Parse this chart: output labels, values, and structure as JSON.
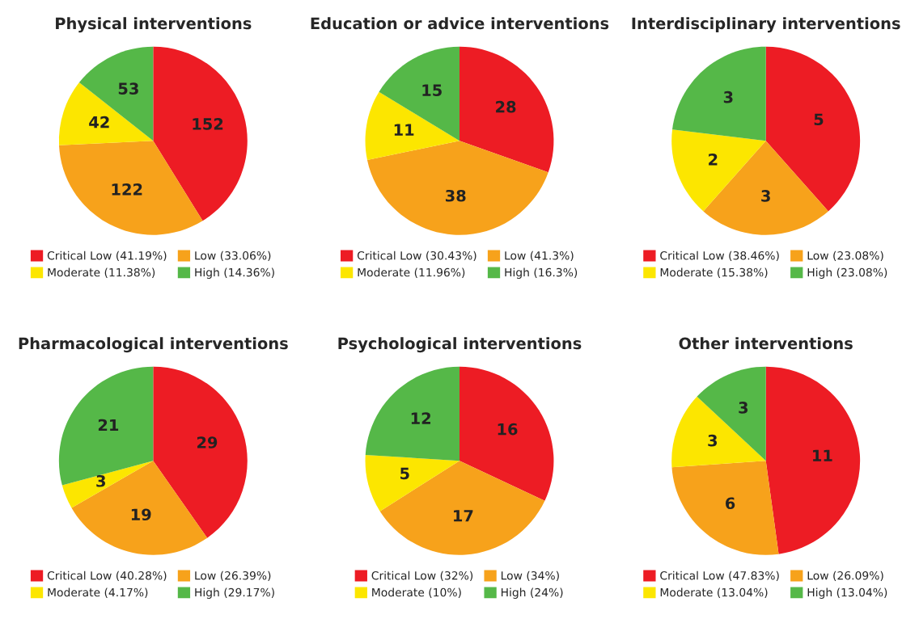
{
  "chart_data": [
    {
      "type": "pie",
      "title": "Physical interventions",
      "categories": [
        "Critical Low (41.19%)",
        "Low (33.06%)",
        "Moderate (11.38%)",
        "High (14.36%)"
      ],
      "values": [
        152,
        122,
        42,
        53
      ],
      "colors": [
        "#ed1c24",
        "#f7a21b",
        "#fce600",
        "#55b848"
      ],
      "data_labels": true,
      "legend": "bottom"
    },
    {
      "type": "pie",
      "title": "Education or advice interventions",
      "categories": [
        "Critical Low (30.43%)",
        "Low (41.3%)",
        "Moderate (11.96%)",
        "High (16.3%)"
      ],
      "values": [
        28,
        38,
        11,
        15
      ],
      "colors": [
        "#ed1c24",
        "#f7a21b",
        "#fce600",
        "#55b848"
      ],
      "data_labels": true,
      "legend": "bottom"
    },
    {
      "type": "pie",
      "title": "Interdisciplinary interventions",
      "categories": [
        "Critical Low (38.46%)",
        "Low (23.08%)",
        "Moderate (15.38%)",
        "High (23.08%)"
      ],
      "values": [
        5,
        3,
        2,
        3
      ],
      "colors": [
        "#ed1c24",
        "#f7a21b",
        "#fce600",
        "#55b848"
      ],
      "data_labels": true,
      "legend": "bottom"
    },
    {
      "type": "pie",
      "title": "Pharmacological interventions",
      "categories": [
        "Critical Low (40.28%)",
        "Low (26.39%)",
        "Moderate (4.17%)",
        "High (29.17%)"
      ],
      "values": [
        29,
        19,
        3,
        21
      ],
      "colors": [
        "#ed1c24",
        "#f7a21b",
        "#fce600",
        "#55b848"
      ],
      "data_labels": true,
      "legend": "bottom"
    },
    {
      "type": "pie",
      "title": "Psychological interventions",
      "categories": [
        "Critical Low (32%)",
        "Low (34%)",
        "Moderate (10%)",
        "High (24%)"
      ],
      "values": [
        16,
        17,
        5,
        12
      ],
      "colors": [
        "#ed1c24",
        "#f7a21b",
        "#fce600",
        "#55b848"
      ],
      "data_labels": true,
      "legend": "bottom"
    },
    {
      "type": "pie",
      "title": "Other interventions",
      "categories": [
        "Critical Low (47.83%)",
        "Low (26.09%)",
        "Moderate (13.04%)",
        "High (13.04%)"
      ],
      "values": [
        11,
        6,
        3,
        3
      ],
      "colors": [
        "#ed1c24",
        "#f7a21b",
        "#fce600",
        "#55b848"
      ],
      "data_labels": true,
      "legend": "bottom"
    }
  ]
}
